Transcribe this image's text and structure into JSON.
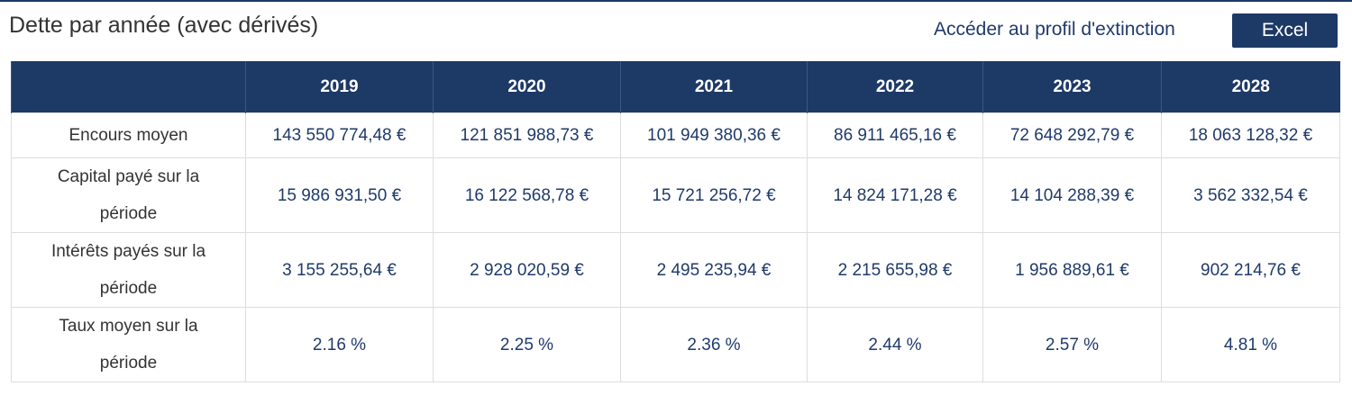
{
  "header": {
    "title": "Dette par année (avec dérivés)",
    "link": "Accéder au profil d'extinction",
    "button": "Excel"
  },
  "table": {
    "columns": [
      "2019",
      "2020",
      "2021",
      "2022",
      "2023",
      "2028"
    ],
    "rows": [
      [
        "Encours moyen",
        "143 550 774,48 €",
        "121 851 988,73 €",
        "101 949 380,36 €",
        "86 911 465,16 €",
        "72 648 292,79 €",
        "18 063 128,32 €"
      ],
      [
        "Capital payé sur la période",
        "15 986 931,50 €",
        "16 122 568,78 €",
        "15 721 256,72 €",
        "14 824 171,28 €",
        "14 104 288,39 €",
        "3 562 332,54 €"
      ],
      [
        "Intérêts payés sur la période",
        "3 155 255,64 €",
        "2 928 020,59 €",
        "2 495 235,94 €",
        "2 215 655,98 €",
        "1 956 889,61 €",
        "902 214,76 €"
      ],
      [
        "Taux moyen sur la période",
        "2.16 %",
        "2.25 %",
        "2.36 %",
        "2.44 %",
        "2.57 %",
        "4.81 %"
      ]
    ]
  }
}
